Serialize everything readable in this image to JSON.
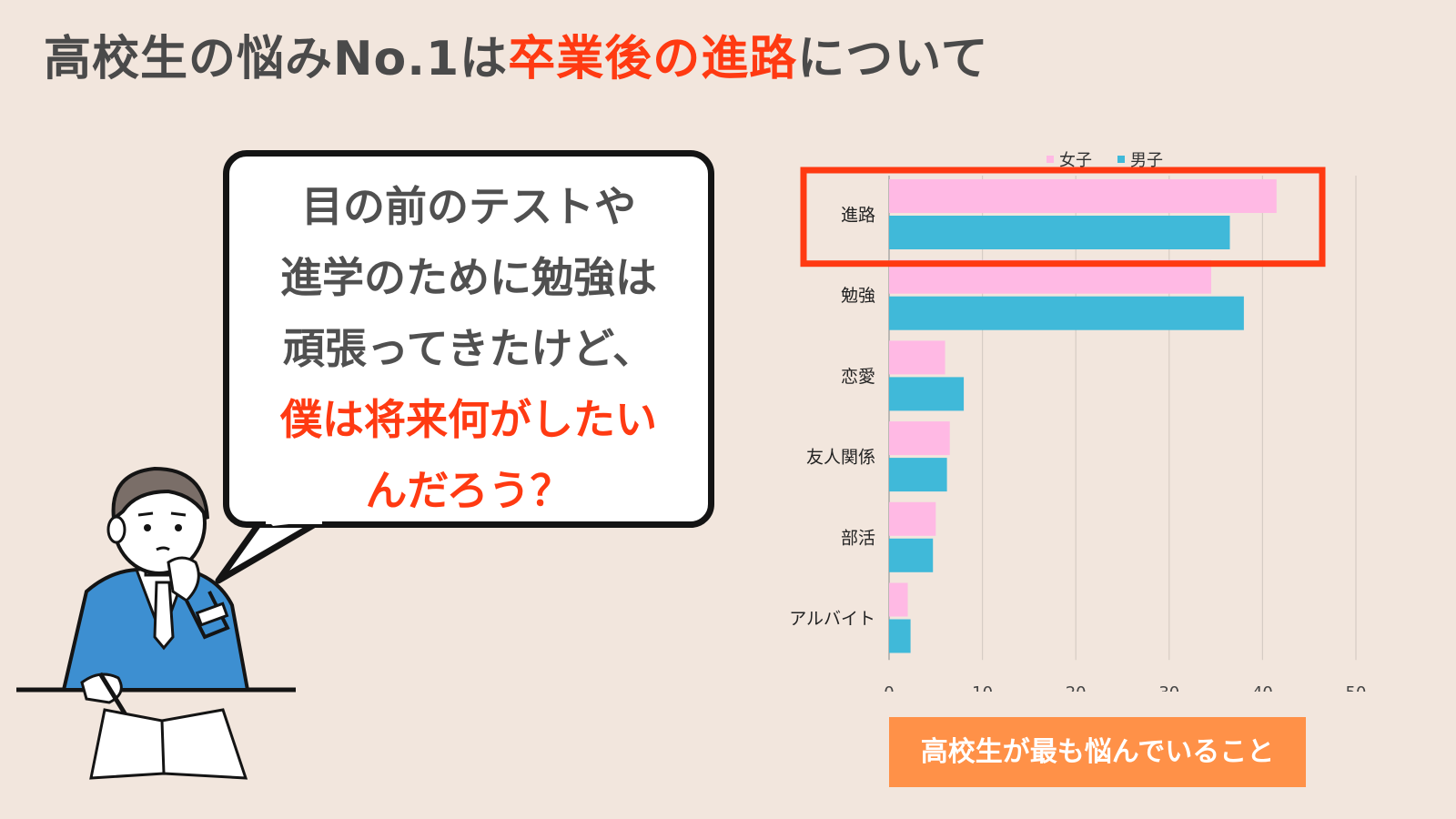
{
  "title": {
    "part1": "高校生の悩みNo.1は",
    "highlight": "卒業後の進路",
    "part2": "について"
  },
  "bubble": {
    "lines": [
      "目の前のテストや",
      "進学のために勉強は",
      "頑張ってきたけど、"
    ],
    "red_lines": [
      "僕は将来何がしたい",
      "んだろう？"
    ]
  },
  "caption": "高校生が最も悩んでいること",
  "colors": {
    "female": "#ffb9e4",
    "male": "#40b9d9",
    "highlight_box": "#ff3a12",
    "caption_bg": "#ff9148",
    "title_highlight": "#ff3a12"
  },
  "chart_data": {
    "type": "bar",
    "orientation": "horizontal",
    "categories": [
      "進路",
      "勉強",
      "恋愛",
      "友人関係",
      "部活",
      "アルバイト"
    ],
    "series": [
      {
        "name": "女子",
        "values": [
          41.5,
          34.5,
          6,
          6.5,
          5,
          2
        ]
      },
      {
        "name": "男子",
        "values": [
          36.5,
          38,
          8,
          6.2,
          4.7,
          2.3
        ]
      }
    ],
    "xlim": [
      0,
      50
    ],
    "xticks": [
      0,
      10,
      20,
      30,
      40,
      50
    ],
    "grid": true,
    "legend": "top",
    "highlighted_category": "進路"
  }
}
